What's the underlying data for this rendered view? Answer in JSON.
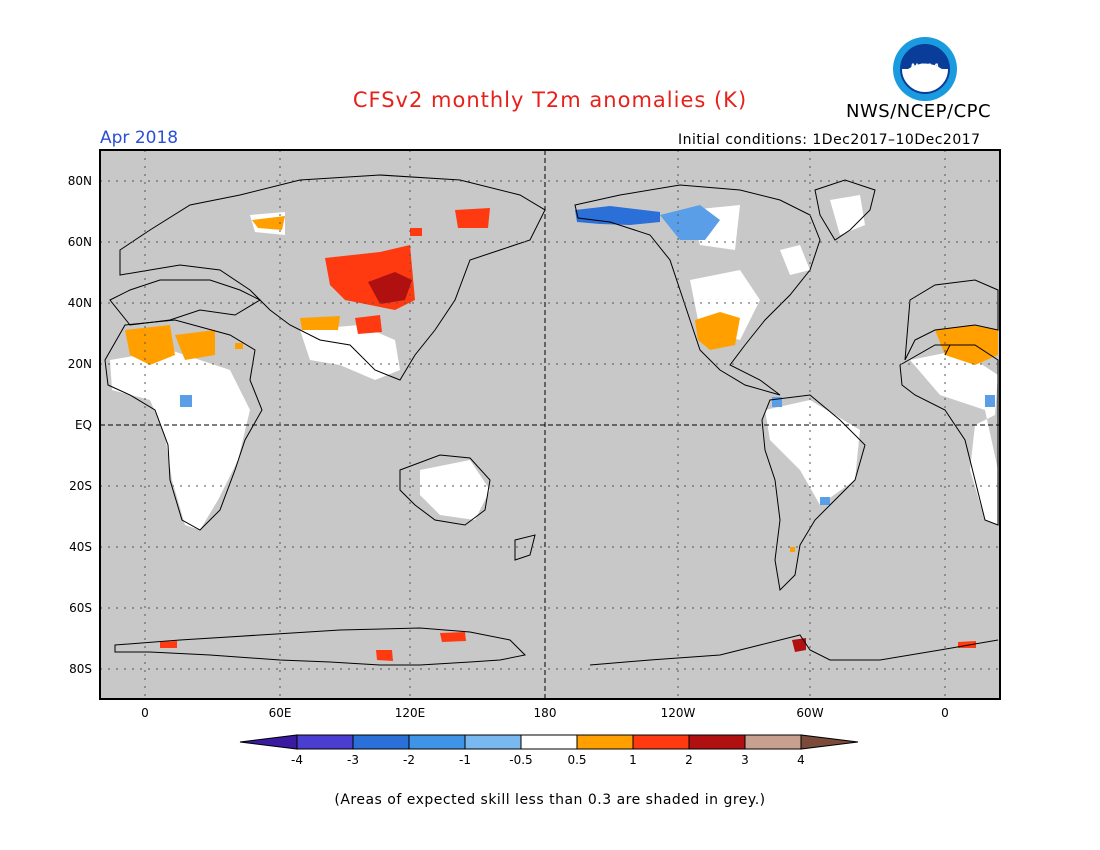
{
  "header": {
    "title": "CFSv2 monthly T2m anomalies (K)",
    "month": "Apr 2018",
    "org": "NWS/NCEP/CPC",
    "initial_conditions": "Initial conditions: 1Dec2017–10Dec2017",
    "logo_text": "NOAA"
  },
  "map": {
    "lat_labels": [
      "80N",
      "60N",
      "40N",
      "20N",
      "EQ",
      "20S",
      "40S",
      "60S",
      "80S"
    ],
    "lon_labels": [
      "0",
      "60E",
      "120E",
      "180",
      "120W",
      "60W",
      "0"
    ],
    "background_color": "#c8c8c8"
  },
  "colorbar": {
    "labels": [
      "-4",
      "-3",
      "-2",
      "-1",
      "-0.5",
      "0.5",
      "1",
      "2",
      "3",
      "4"
    ],
    "colors": [
      "#3a1aa0",
      "#4a3ed0",
      "#2b6fd8",
      "#3f94e8",
      "#7ab8f0",
      "#ffffff",
      "#ffa000",
      "#ff3a10",
      "#b01010",
      "#c8a090",
      "#7a4a3a"
    ]
  },
  "note": "(Areas of expected skill less than 0.3 are shaded in grey.)"
}
